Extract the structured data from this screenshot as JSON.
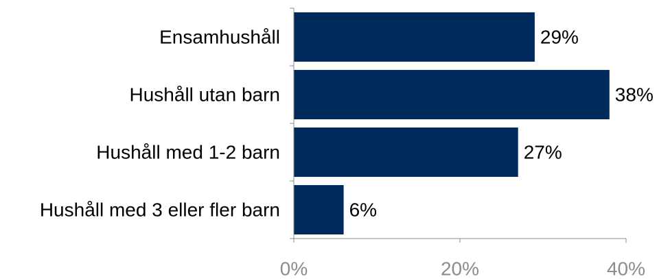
{
  "chart_data": {
    "type": "bar",
    "orientation": "horizontal",
    "categories": [
      "Ensamhushåll",
      "Hushåll utan barn",
      "Hushåll med 1-2 barn",
      "Hushåll med 3 eller fler barn"
    ],
    "values": [
      29,
      38,
      27,
      6
    ],
    "data_labels": [
      "29%",
      "38%",
      "27%",
      "6%"
    ],
    "xlim": [
      0,
      40
    ],
    "x_ticks": [
      0,
      20,
      40
    ],
    "x_tick_labels": [
      "0%",
      "20%",
      "40%"
    ],
    "title": "",
    "xlabel": "",
    "ylabel": "",
    "bar_color": "#002a5c",
    "axis_color": "#8c8c8c",
    "grid": false,
    "legend": "none"
  }
}
